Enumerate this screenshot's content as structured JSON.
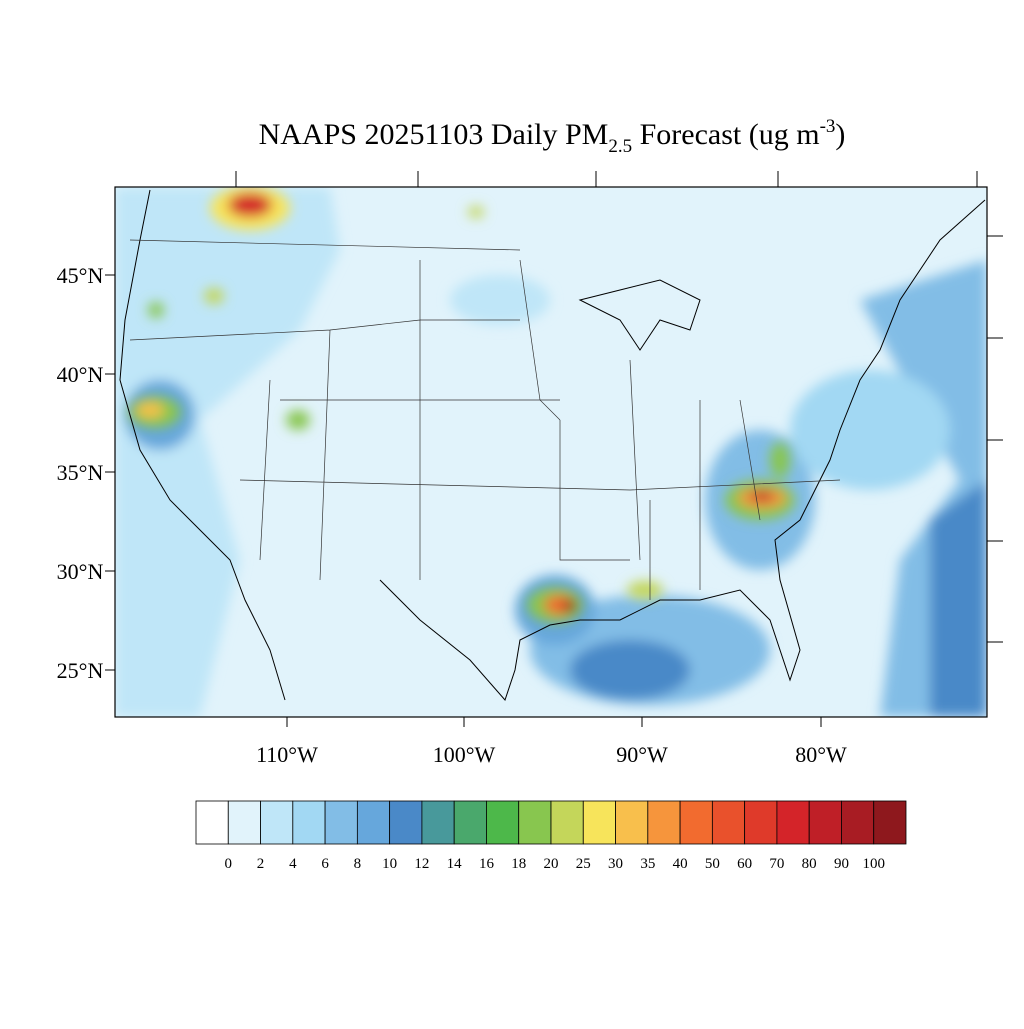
{
  "title": {
    "main": "NAAPS 20251103 Daily PM",
    "subscript": "2.5",
    "rest": " Forecast (ug m",
    "superscript": "-3",
    "end": ")"
  },
  "lat_labels": [
    "45°N",
    "40°N",
    "35°N",
    "30°N",
    "25°N"
  ],
  "lon_labels": [
    "110°W",
    "100°W",
    "90°W",
    "80°W"
  ],
  "colorbar": {
    "levels": [
      0,
      2,
      4,
      6,
      8,
      10,
      12,
      14,
      16,
      18,
      20,
      25,
      30,
      35,
      40,
      50,
      60,
      70,
      80,
      90,
      100
    ],
    "colors": [
      "#ffffff",
      "#e1f3fb",
      "#bfe6f8",
      "#a2d8f3",
      "#82bde6",
      "#66a7dc",
      "#4a89c8",
      "#48999b",
      "#4aa86c",
      "#4db84a",
      "#88c64f",
      "#c4d65a",
      "#f7e45b",
      "#f8bf4c",
      "#f6953c",
      "#f26b2f",
      "#e9512c",
      "#df3a2a",
      "#d42429",
      "#bf1f27",
      "#a81c23",
      "#8e181d"
    ]
  }
}
